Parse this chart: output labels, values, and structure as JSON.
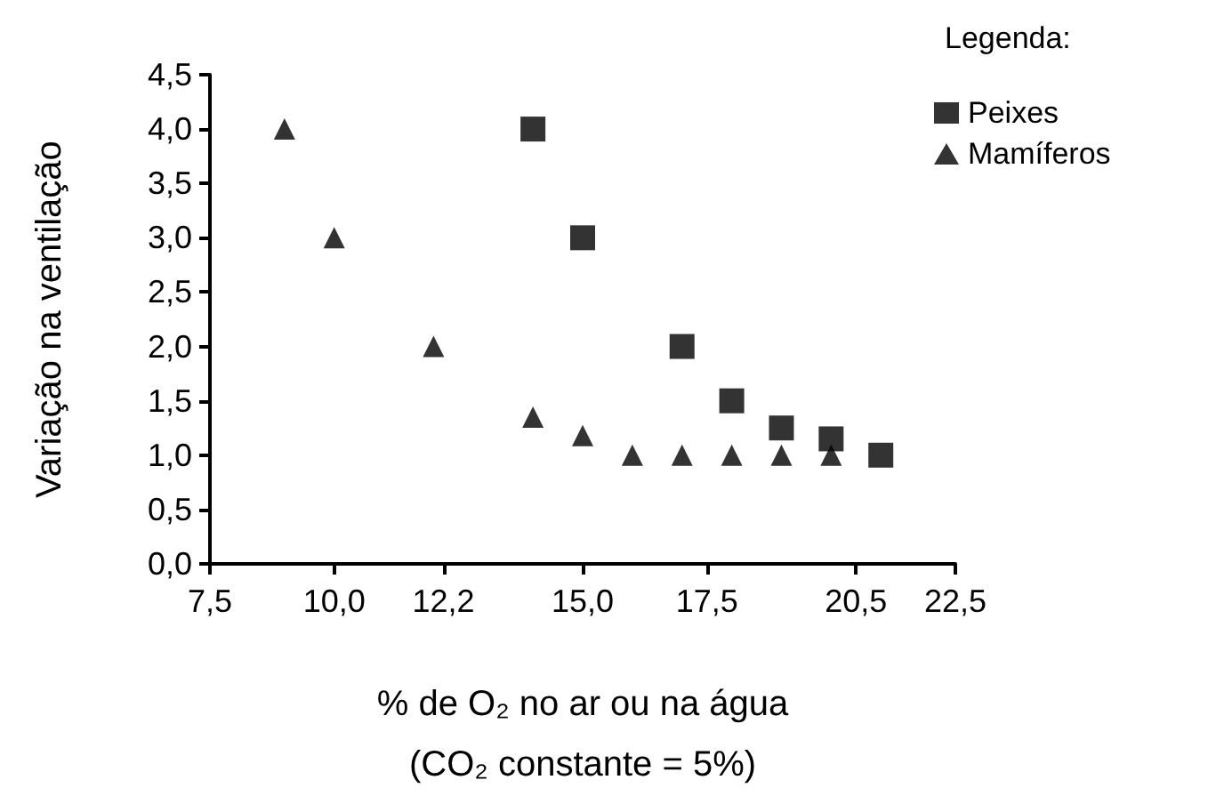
{
  "chart_data": {
    "type": "scatter",
    "xlabel": "% de O₂ no ar ou na água\n(CO₂ constante = 5%)",
    "ylabel": "Variação na ventilação",
    "legend_title": "Legenda:",
    "legend": "top right",
    "grid": false,
    "xlim": [
      7.5,
      22.5
    ],
    "xticks": [
      {
        "value": 7.5,
        "label": "7,5"
      },
      {
        "value": 10,
        "label": "10,0"
      },
      {
        "value": 12.2,
        "label": "12,2"
      },
      {
        "value": 15,
        "label": "15,0"
      },
      {
        "value": 17.5,
        "label": "17,5"
      },
      {
        "value": 20.5,
        "label": "20,5"
      },
      {
        "value": 22.5,
        "label": "22,5"
      }
    ],
    "ylim": [
      0,
      4.5
    ],
    "yticks": [
      {
        "value": 0,
        "label": "0,0"
      },
      {
        "value": 0.5,
        "label": "0,5"
      },
      {
        "value": 1,
        "label": "1,0"
      },
      {
        "value": 1.5,
        "label": "1,5"
      },
      {
        "value": 2,
        "label": "2,0"
      },
      {
        "value": 2.5,
        "label": "2,5"
      },
      {
        "value": 3,
        "label": "3,0"
      },
      {
        "value": 3.5,
        "label": "3,5"
      },
      {
        "value": 4,
        "label": "4,0"
      },
      {
        "value": 4.5,
        "label": "4,5"
      }
    ],
    "series": [
      {
        "name": "Peixes",
        "color": "#000000",
        "marker": "square",
        "x": [
          14,
          15,
          17,
          18,
          19,
          20,
          21
        ],
        "values": [
          4.0,
          3.0,
          2.0,
          1.5,
          1.25,
          1.15,
          1.0
        ]
      },
      {
        "name": "Mamíferos",
        "color": "#000000",
        "marker": "triangle",
        "x": [
          9,
          10,
          12,
          14,
          15,
          16,
          17,
          18,
          19,
          20
        ],
        "values": [
          4.0,
          3.0,
          2.0,
          1.35,
          1.18,
          1.0,
          1.0,
          1.0,
          1.0,
          1.0
        ]
      }
    ]
  }
}
